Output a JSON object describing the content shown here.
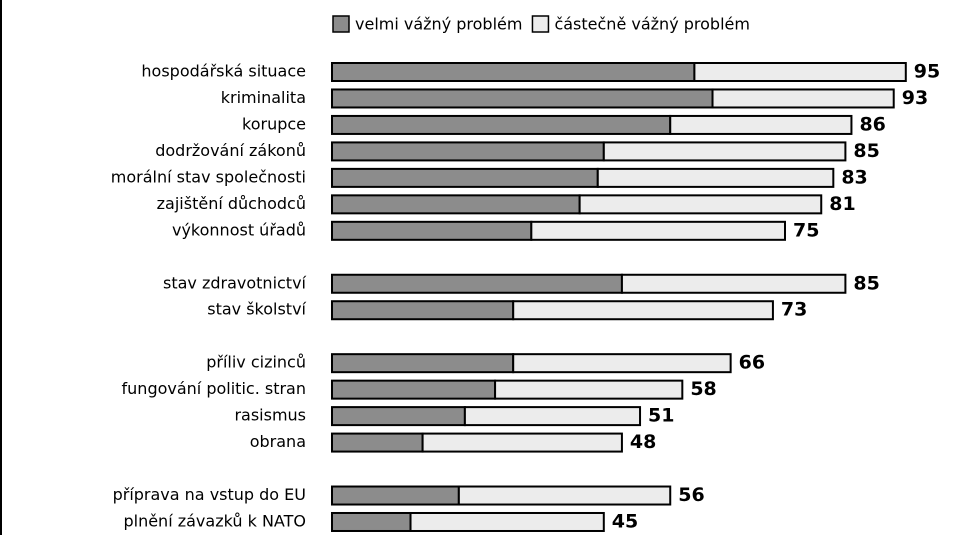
{
  "chart_data": {
    "type": "stacked-barh",
    "categories": [
      "hospodářská situace",
      "kriminalita",
      "korupce",
      "dodržování zákonů",
      "morální stav společnosti",
      "zajištění důchodců",
      "výkonnost úřadů",
      null,
      "stav zdravotnictví",
      "stav školství",
      null,
      "příliv cizinců",
      "fungování politic. stran",
      "rasismus",
      "obrana",
      null,
      "příprava na vstup do EU",
      "plnění závazků k NATO"
    ],
    "series": [
      {
        "name": "velmi vážný problém",
        "color": "#8c8c8c",
        "values": [
          60,
          63,
          56,
          45,
          44,
          41,
          33,
          null,
          48,
          30,
          null,
          30,
          27,
          22,
          15,
          null,
          21,
          13
        ]
      },
      {
        "name": "částečně vážný problém",
        "color": "#ececec",
        "values": [
          35,
          30,
          30,
          40,
          39,
          40,
          42,
          null,
          37,
          43,
          null,
          36,
          31,
          29,
          33,
          null,
          35,
          32
        ]
      }
    ],
    "totals": [
      95,
      93,
      86,
      85,
      83,
      81,
      75,
      null,
      85,
      73,
      null,
      66,
      58,
      51,
      48,
      null,
      56,
      45
    ],
    "xlim": [
      0,
      100
    ],
    "legend": "top"
  }
}
